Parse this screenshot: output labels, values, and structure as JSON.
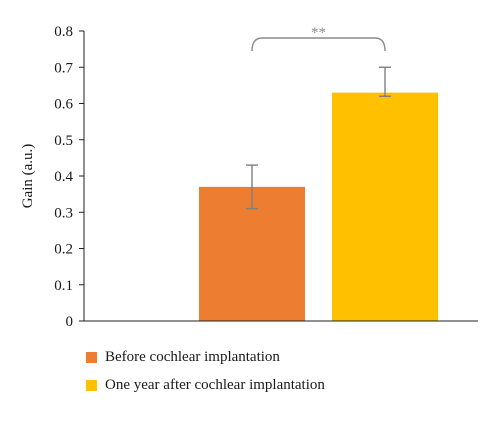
{
  "chart_data": {
    "type": "bar",
    "categories": [
      "Before cochlear implantation",
      "One year after cochlear implantation"
    ],
    "series": [
      {
        "values": [
          0.37,
          0.63
        ],
        "error_low": [
          0.31,
          0.62
        ],
        "error_high": [
          0.43,
          0.7
        ]
      }
    ],
    "colors": [
      "#ed7d31",
      "#ffc000"
    ],
    "ylabel": "Gain (a.u.)",
    "ylim": [
      0,
      0.8
    ],
    "yticks": [
      0,
      0.1,
      0.2,
      0.3,
      0.4,
      0.5,
      0.6,
      0.7,
      0.8
    ],
    "ytick_labels": [
      "0",
      "0.1",
      "0.2",
      "0.3",
      "0.4",
      "0.5",
      "0.6",
      "0.7",
      "0.8"
    ],
    "significance": "**",
    "grid": false,
    "legend_position": "bottom-left"
  },
  "legend": {
    "items": [
      {
        "label": "Before cochlear implantation",
        "color": "#ed7d31"
      },
      {
        "label": "One year after cochlear implantation",
        "color": "#ffc000"
      }
    ]
  }
}
